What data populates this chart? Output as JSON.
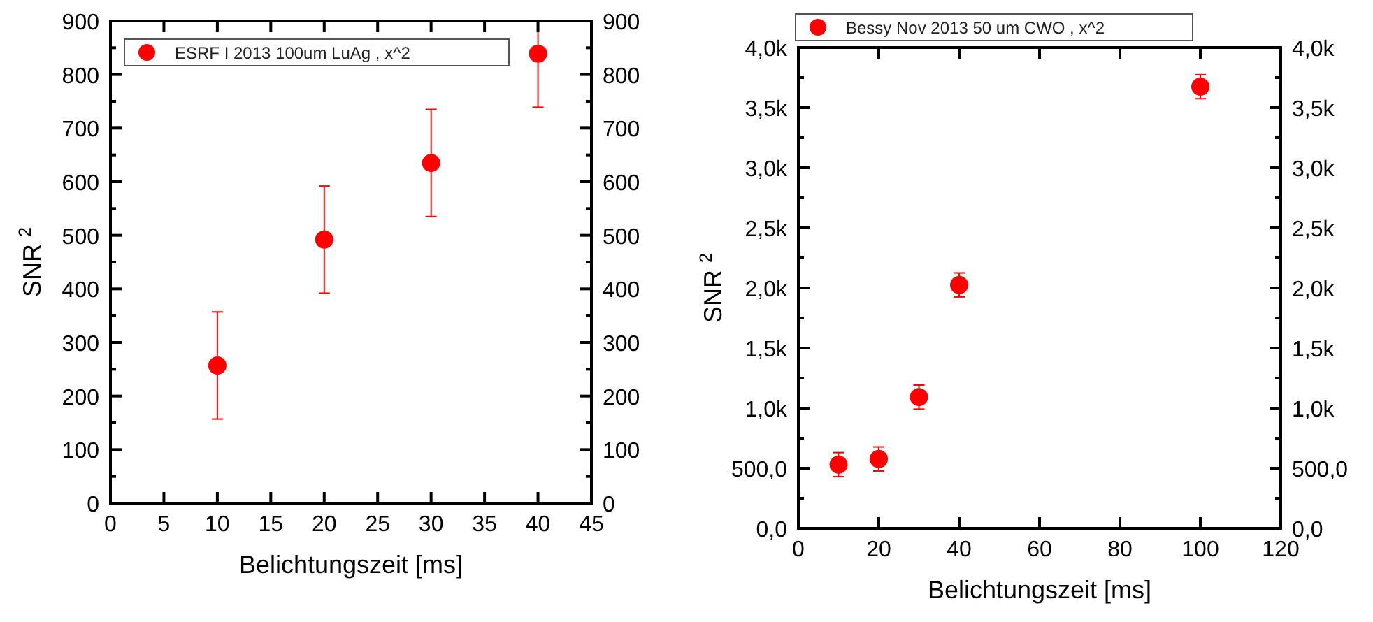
{
  "chart_data": [
    {
      "type": "scatter",
      "xlabel": "Belichtungszeit [ms]",
      "ylabel": "SNR $^{2}$",
      "x": [
        10,
        20,
        30,
        40
      ],
      "series": [
        {
          "name": "ESRF I 2013 100um LuAg , x^2",
          "color": "#ff0000",
          "values": [
            257,
            492,
            635,
            839
          ],
          "errors": [
            [
              157,
              357
            ],
            [
              392,
              592
            ],
            [
              535,
              735
            ],
            [
              739,
              900
            ]
          ]
        }
      ],
      "xlim": [
        0,
        45
      ],
      "xticks": [
        0,
        5,
        10,
        15,
        20,
        25,
        30,
        35,
        40,
        45
      ],
      "ylim": [
        0,
        900
      ],
      "yticks": [
        0,
        {
          "value": 50,
          "label": null
        },
        100,
        {
          "value": 150,
          "label": null
        },
        200,
        {
          "value": 250,
          "label": null
        },
        300,
        {
          "value": 350,
          "label": null
        },
        400,
        {
          "value": 450,
          "label": null
        },
        500,
        {
          "value": 550,
          "label": null
        },
        600,
        {
          "value": 650,
          "label": null
        },
        700,
        {
          "value": 750,
          "label": null
        },
        800,
        {
          "value": 850,
          "label": null
        },
        900
      ],
      "y2lim": [
        0,
        900
      ],
      "y2ticks": [
        0,
        {
          "value": 50,
          "label": null
        },
        100,
        {
          "value": 150,
          "label": null
        },
        200,
        {
          "value": 250,
          "label": null
        },
        300,
        {
          "value": 350,
          "label": null
        },
        400,
        {
          "value": 450,
          "label": null
        },
        500,
        {
          "value": 550,
          "label": null
        },
        600,
        {
          "value": 650,
          "label": null
        },
        700,
        {
          "value": 750,
          "label": null
        },
        800,
        {
          "value": 850,
          "label": null
        },
        900
      ],
      "marker": "circle",
      "grid": false,
      "legend": "top left"
    },
    {
      "type": "scatter",
      "xlabel": "Belichtungszeit [ms]",
      "ylabel": "SNR $^{2}$",
      "x": [
        10,
        20,
        30,
        40,
        100
      ],
      "series": [
        {
          "name": "Bessy Nov 2013 50 um CWO , x^2",
          "color": "#ff0000",
          "values": [
            530,
            577,
            1092,
            2025,
            3674
          ],
          "errors": [
            [
              430,
              630
            ],
            [
              477,
              677
            ],
            [
              992,
              1192
            ],
            [
              1925,
              2125
            ],
            [
              3574,
              3774
            ]
          ]
        }
      ],
      "xlim": [
        0,
        120
      ],
      "xticks": [
        0,
        20,
        40,
        60,
        80,
        100,
        120
      ],
      "ylim": [
        0,
        4000
      ],
      "yticks": [
        {
          "value": 0,
          "label": "0,0"
        },
        {
          "value": 250,
          "label": null
        },
        {
          "value": 500,
          "label": "500,0"
        },
        {
          "value": 750,
          "label": null
        },
        {
          "value": 1000,
          "label": "1,0k"
        },
        {
          "value": 1250,
          "label": null
        },
        {
          "value": 1500,
          "label": "1,5k"
        },
        {
          "value": 1750,
          "label": null
        },
        {
          "value": 2000,
          "label": "2,0k"
        },
        {
          "value": 2250,
          "label": null
        },
        {
          "value": 2500,
          "label": "2,5k"
        },
        {
          "value": 2750,
          "label": null
        },
        {
          "value": 3000,
          "label": "3,0k"
        },
        {
          "value": 3250,
          "label": null
        },
        {
          "value": 3500,
          "label": "3,5k"
        },
        {
          "value": 3750,
          "label": null
        },
        {
          "value": 4000,
          "label": "4,0k"
        }
      ],
      "y2lim": [
        0,
        4000
      ],
      "y2ticks": [
        {
          "value": 0,
          "label": "0,0"
        },
        {
          "value": 250,
          "label": null
        },
        {
          "value": 500,
          "label": "500,0"
        },
        {
          "value": 750,
          "label": null
        },
        {
          "value": 1000,
          "label": "1,0k"
        },
        {
          "value": 1250,
          "label": null
        },
        {
          "value": 1500,
          "label": "1,5k"
        },
        {
          "value": 1750,
          "label": null
        },
        {
          "value": 2000,
          "label": "2,0k"
        },
        {
          "value": 2250,
          "label": null
        },
        {
          "value": 2500,
          "label": "2,5k"
        },
        {
          "value": 2750,
          "label": null
        },
        {
          "value": 3000,
          "label": "3,0k"
        },
        {
          "value": 3250,
          "label": null
        },
        {
          "value": 3500,
          "label": "3,5k"
        },
        {
          "value": 3750,
          "label": null
        },
        {
          "value": 4000,
          "label": "4,0k"
        }
      ],
      "marker": "circle",
      "grid": false,
      "legend": "top"
    }
  ]
}
